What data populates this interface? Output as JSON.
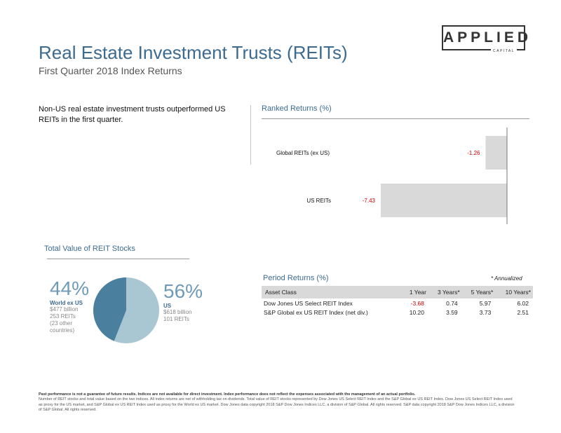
{
  "logo": {
    "word": "APPLIED",
    "sub": "CAPITAL"
  },
  "header": {
    "title": "Real Estate Investment Trusts (REITs)",
    "subtitle": "First Quarter 2018 Index Returns"
  },
  "intro": "Non-US real estate investment trusts outperformed US REITs in the first quarter.",
  "ranked": {
    "heading": "Ranked Returns (%)"
  },
  "total_value": {
    "heading": "Total Value of REIT Stocks",
    "world": {
      "pct": "44%",
      "name": "World ex US",
      "value": "$477 billion",
      "count": "253 REITs",
      "note": "(23 other countries)"
    },
    "us": {
      "pct": "56%",
      "name": "US",
      "value": "$618 billion",
      "count": "101 REITs"
    }
  },
  "period": {
    "heading": "Period Returns (%)",
    "note": "* Annualized",
    "columns": [
      "Asset Class",
      "1 Year",
      "3 Years*",
      "5 Years*",
      "10 Years*"
    ],
    "rows": [
      [
        "Dow Jones US Select REIT Index",
        "-3.68",
        "0.74",
        "5.97",
        "6.02"
      ],
      [
        "S&P Global ex US REIT Index (net div.)",
        "10.20",
        "3.59",
        "3.73",
        "2.51"
      ]
    ]
  },
  "footer": {
    "bold": "Past performance is not a guarantee of future results. Indices are not available for direct investment. Index performance does not reflect the expenses associated with the management of an actual portfolio.",
    "text": "Number of REIT stocks and total value based on the two indices. All index returns are net of withholding tax on dividends. Total value of REIT stocks represented by Dow Jones US Select REIT Index and the S&P Global ex US REIT Index. Dow Jones US Select REIT Index used as proxy for the US market, and S&P Global ex US REIT Index used as proxy for the World ex US market. Dow Jones data copyright 2018 S&P Dow Jones Indices LLC, a division of S&P Global. All rights reserved. S&P data copyright 2018 S&P Dow Jones Indices LLC, a division of S&P Global. All rights reserved."
  },
  "colors": {
    "bar": "#d9d9d9",
    "negative": "#cc0000",
    "pie_world": "#4a7f9e",
    "pie_us": "#a9c6d3",
    "accent": "#3d6b8f"
  },
  "chart_data": [
    {
      "type": "bar",
      "orientation": "horizontal",
      "title": "Ranked Returns (%)",
      "categories": [
        "Global REITs (ex US)",
        "US REITs"
      ],
      "values": [
        -1.26,
        -7.43
      ],
      "xlim": [
        -7.43,
        0
      ]
    },
    {
      "type": "pie",
      "title": "Total Value of REIT Stocks",
      "labels": [
        "World ex US",
        "US"
      ],
      "values": [
        44,
        56
      ]
    }
  ]
}
